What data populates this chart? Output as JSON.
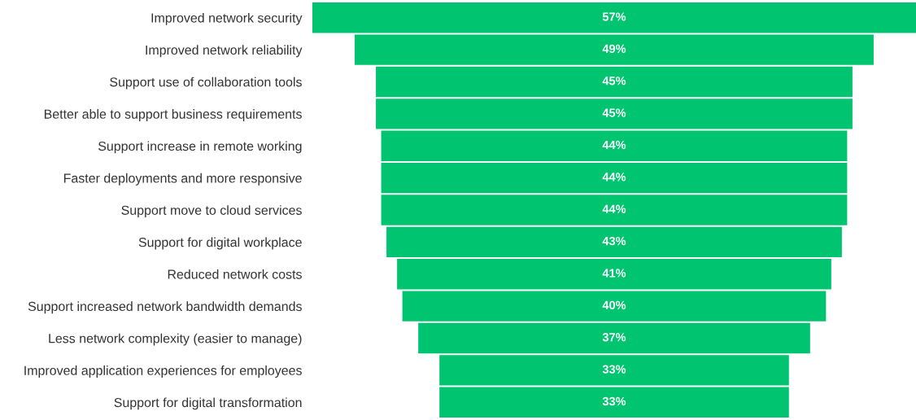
{
  "chart_data": {
    "type": "other",
    "color": "#00c46f",
    "data_labels": true,
    "categories": [
      "Improved network security",
      "Improved network reliability",
      "Support use of collaboration tools",
      "Better able to support business requirements",
      "Support increase in remote working",
      "Faster deployments and more responsive",
      "Support move to cloud services",
      "Support for digital workplace",
      "Reduced network costs",
      "Support increased network bandwidth demands",
      "Less network complexity (easier to manage)",
      "Improved application experiences for employees",
      "Support for digital transformation"
    ],
    "values": [
      57,
      49,
      45,
      45,
      44,
      44,
      44,
      43,
      41,
      40,
      37,
      33,
      33
    ],
    "value_labels": [
      "57%",
      "49%",
      "45%",
      "45%",
      "44%",
      "44%",
      "44%",
      "43%",
      "41%",
      "40%",
      "37%",
      "33%",
      "33%"
    ]
  }
}
